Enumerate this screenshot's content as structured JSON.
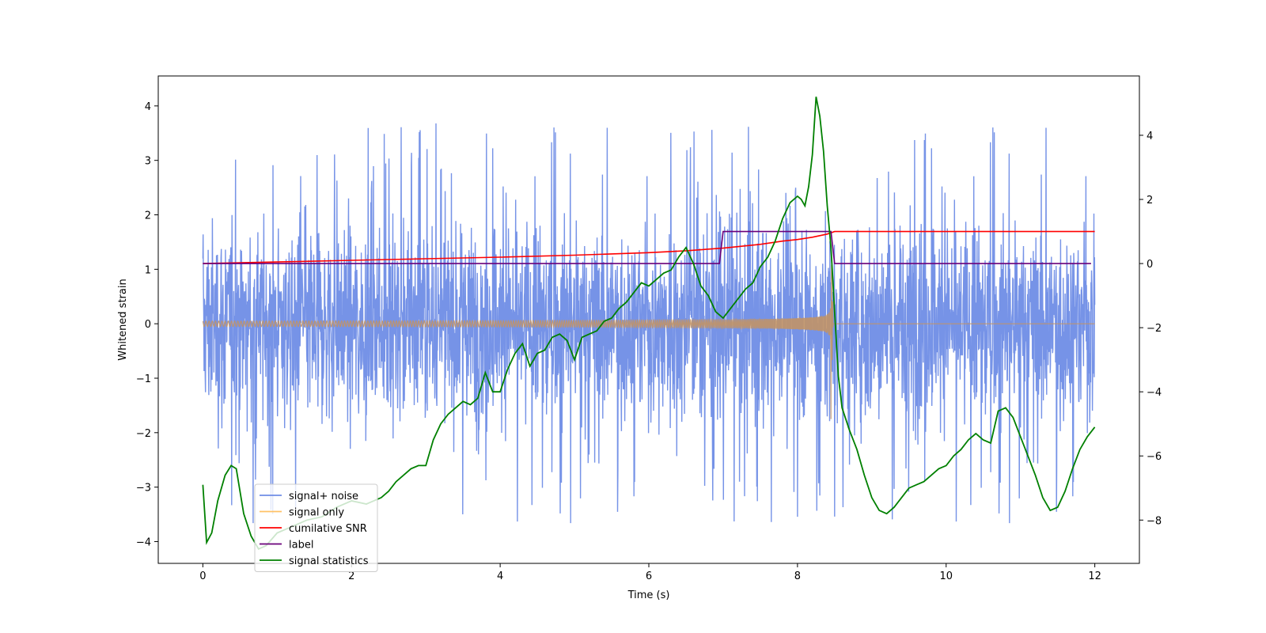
{
  "chart_data": {
    "type": "line",
    "title": "",
    "xlabel": "Time (s)",
    "ylabel": "Whitened strain",
    "ylabel_right": "",
    "xlim": [
      -0.6,
      12.6
    ],
    "ylim": [
      -4.4,
      4.55
    ],
    "ylim_right": [
      -9.35,
      5.85
    ],
    "x_ticks": [
      0,
      2,
      4,
      6,
      8,
      10,
      12
    ],
    "y_ticks": [
      -4,
      -3,
      -2,
      -1,
      0,
      1,
      2,
      3,
      4
    ],
    "y_ticks_right": [
      -8,
      -6,
      -4,
      -2,
      0,
      2,
      4
    ],
    "grid": false,
    "legend": {
      "placement": "lower-left",
      "entries": [
        {
          "label": "signal+ noise",
          "color": "#6f8de6"
        },
        {
          "label": "signal only",
          "color": "#ffc266"
        },
        {
          "label": "cumilative SNR",
          "color": "#ff0000"
        },
        {
          "label": "label",
          "color": "#6a007a"
        },
        {
          "label": "signal statistics",
          "color": "#008000"
        }
      ]
    },
    "series": [
      {
        "name": "signal+ noise",
        "axis": "left",
        "color": "#6f8de6",
        "t_range": [
          0,
          12
        ],
        "noise_sigma": 0.9,
        "typical_peaks": [
          2.6,
          -2.4
        ],
        "max": 4.18,
        "min": -3.98
      },
      {
        "name": "signal only",
        "axis": "left",
        "color": "#ffc266",
        "chirp_start": 0,
        "merger_time": 8.45,
        "envelope_start": 0.05,
        "envelope_peak": 0.82,
        "ringdown_min": -1.75,
        "after_merger": 0
      },
      {
        "name": "cumilative SNR",
        "axis": "right",
        "color": "#ff0000",
        "x": [
          0,
          1,
          2,
          3,
          4,
          5,
          6,
          6.5,
          7,
          7.5,
          7.8,
          8,
          8.2,
          8.4,
          8.5,
          9,
          10,
          11,
          12
        ],
        "y": [
          0,
          0.05,
          0.1,
          0.15,
          0.2,
          0.26,
          0.34,
          0.4,
          0.48,
          0.6,
          0.7,
          0.75,
          0.82,
          0.92,
          1.0,
          1.0,
          1.0,
          1.0,
          1.0
        ]
      },
      {
        "name": "label",
        "axis": "right",
        "color": "#6a007a",
        "x": [
          0,
          6.95,
          7.0,
          8.45,
          8.5,
          11.95
        ],
        "y": [
          0,
          0,
          1,
          1,
          0,
          0
        ]
      },
      {
        "name": "signal statistics",
        "axis": "right",
        "color": "#008000",
        "x": [
          0,
          0.05,
          0.12,
          0.2,
          0.3,
          0.38,
          0.45,
          0.55,
          0.65,
          0.75,
          0.85,
          1.0,
          1.2,
          1.4,
          1.6,
          1.8,
          2.0,
          2.2,
          2.4,
          2.5,
          2.6,
          2.7,
          2.8,
          2.9,
          3.0,
          3.1,
          3.2,
          3.3,
          3.4,
          3.5,
          3.6,
          3.7,
          3.8,
          3.9,
          4.0,
          4.1,
          4.2,
          4.3,
          4.4,
          4.5,
          4.6,
          4.7,
          4.8,
          4.9,
          5.0,
          5.1,
          5.2,
          5.3,
          5.4,
          5.5,
          5.6,
          5.7,
          5.8,
          5.9,
          6.0,
          6.1,
          6.2,
          6.3,
          6.4,
          6.5,
          6.6,
          6.7,
          6.8,
          6.9,
          7.0,
          7.1,
          7.2,
          7.3,
          7.4,
          7.5,
          7.6,
          7.7,
          7.8,
          7.9,
          8.0,
          8.05,
          8.1,
          8.15,
          8.2,
          8.25,
          8.3,
          8.35,
          8.4,
          8.45,
          8.5,
          8.55,
          8.6,
          8.7,
          8.8,
          8.9,
          9.0,
          9.1,
          9.2,
          9.3,
          9.4,
          9.5,
          9.6,
          9.7,
          9.8,
          9.9,
          10.0,
          10.1,
          10.2,
          10.3,
          10.4,
          10.5,
          10.6,
          10.7,
          10.8,
          10.9,
          11.0,
          11.1,
          11.2,
          11.3,
          11.4,
          11.5,
          11.6,
          11.7,
          11.8,
          11.9,
          12.0
        ],
        "y": [
          -6.9,
          -8.7,
          -8.4,
          -7.4,
          -6.6,
          -6.3,
          -6.4,
          -7.8,
          -8.5,
          -8.9,
          -8.8,
          -8.4,
          -8.2,
          -8.0,
          -7.9,
          -7.6,
          -7.4,
          -7.5,
          -7.3,
          -7.1,
          -6.8,
          -6.6,
          -6.4,
          -6.3,
          -6.3,
          -5.5,
          -5.0,
          -4.7,
          -4.5,
          -4.3,
          -4.4,
          -4.2,
          -3.4,
          -4.0,
          -4.0,
          -3.3,
          -2.8,
          -2.5,
          -3.2,
          -2.8,
          -2.7,
          -2.3,
          -2.2,
          -2.4,
          -3.0,
          -2.3,
          -2.2,
          -2.1,
          -1.8,
          -1.7,
          -1.4,
          -1.2,
          -0.9,
          -0.6,
          -0.7,
          -0.5,
          -0.3,
          -0.2,
          0.2,
          0.5,
          0.0,
          -0.7,
          -1.0,
          -1.5,
          -1.7,
          -1.4,
          -1.1,
          -0.8,
          -0.6,
          -0.1,
          0.2,
          0.7,
          1.4,
          1.9,
          2.1,
          2.0,
          1.8,
          2.4,
          3.4,
          5.2,
          4.6,
          3.5,
          1.8,
          0.5,
          -1.5,
          -3.5,
          -4.5,
          -5.2,
          -5.8,
          -6.6,
          -7.3,
          -7.7,
          -7.8,
          -7.6,
          -7.3,
          -7.0,
          -6.9,
          -6.8,
          -6.6,
          -6.4,
          -6.3,
          -6.0,
          -5.8,
          -5.5,
          -5.3,
          -5.5,
          -5.6,
          -4.6,
          -4.5,
          -4.8,
          -5.4,
          -6.0,
          -6.6,
          -7.3,
          -7.7,
          -7.6,
          -7.1,
          -6.4,
          -5.8,
          -5.4,
          -5.1
        ]
      }
    ]
  }
}
